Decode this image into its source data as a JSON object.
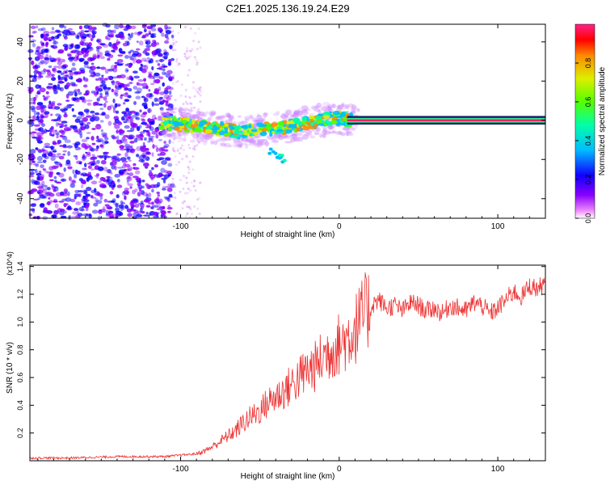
{
  "title": "C2E1.2025.136.19.24.E29",
  "chart_data": [
    {
      "type": "heatmap",
      "xlabel": "Height of straight line (km)",
      "ylabel": "Frequency (Hz)",
      "xlim": [
        -195,
        130
      ],
      "ylim": [
        -50,
        49
      ],
      "xticks": [
        -100,
        0,
        100
      ],
      "yticks": [
        -40,
        -20,
        0,
        20,
        40
      ],
      "colorbar": {
        "label": "Normalized spectral amplitude",
        "range": [
          0,
          1
        ],
        "ticks": [
          0.0,
          0.2,
          0.4,
          0.6,
          0.8
        ]
      },
      "track": [
        [
          -112,
          -1
        ],
        [
          -100,
          -2
        ],
        [
          -90,
          -3
        ],
        [
          -80,
          -4
        ],
        [
          -70,
          -5
        ],
        [
          -60,
          -6
        ],
        [
          -50,
          -5
        ],
        [
          -40,
          -4
        ],
        [
          -30,
          -3
        ],
        [
          -20,
          -1
        ],
        [
          -10,
          0
        ],
        [
          0,
          1
        ],
        [
          10,
          0
        ],
        [
          130,
          0
        ]
      ],
      "steady_band": {
        "x_start": 5,
        "x_end": 130,
        "freq": 0
      }
    },
    {
      "type": "line",
      "xlabel": "Height of straight line (km)",
      "ylabel": "SNR (10 * v/v)",
      "y_multiplier": "(x10^4)",
      "xlim": [
        -195,
        130
      ],
      "ylim": [
        0,
        1.41
      ],
      "xticks": [
        -100,
        0,
        100
      ],
      "yticks": [
        0.2,
        0.4,
        0.6,
        0.8,
        1.0,
        1.2,
        1.4
      ],
      "series": [
        {
          "color": "#ee3333",
          "x": [
            -195,
            -170,
            -140,
            -110,
            -90,
            -85,
            -80,
            -75,
            -70,
            -65,
            -60,
            -55,
            -50,
            -45,
            -40,
            -35,
            -30,
            -25,
            -20,
            -15,
            -10,
            -5,
            0,
            5,
            10,
            15,
            20,
            25,
            30,
            35,
            40,
            45,
            50,
            55,
            60,
            65,
            70,
            75,
            80,
            85,
            90,
            95,
            100,
            105,
            110,
            115,
            120,
            125,
            130
          ],
          "y": [
            0.02,
            0.02,
            0.03,
            0.03,
            0.05,
            0.07,
            0.1,
            0.14,
            0.18,
            0.22,
            0.28,
            0.32,
            0.36,
            0.42,
            0.46,
            0.5,
            0.55,
            0.6,
            0.65,
            0.68,
            0.75,
            0.8,
            0.84,
            0.88,
            0.95,
            1.04,
            1.12,
            1.16,
            1.1,
            1.12,
            1.08,
            1.14,
            1.12,
            1.08,
            1.1,
            1.06,
            1.12,
            1.1,
            1.08,
            1.14,
            1.12,
            1.06,
            1.1,
            1.16,
            1.22,
            1.18,
            1.26,
            1.24,
            1.28
          ]
        }
      ]
    }
  ]
}
